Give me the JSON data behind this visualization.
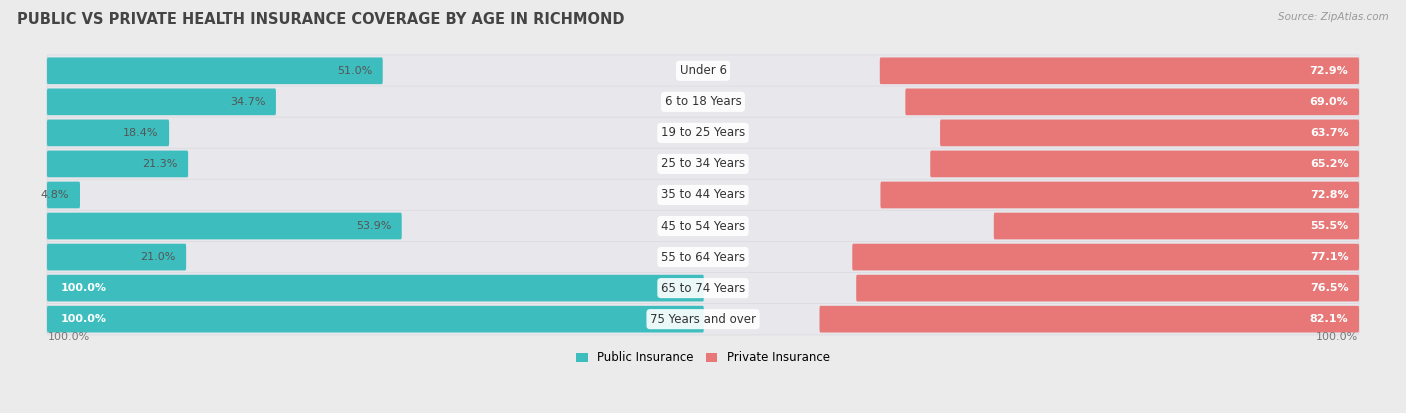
{
  "title": "PUBLIC VS PRIVATE HEALTH INSURANCE COVERAGE BY AGE IN RICHMOND",
  "source": "Source: ZipAtlas.com",
  "categories": [
    "Under 6",
    "6 to 18 Years",
    "19 to 25 Years",
    "25 to 34 Years",
    "35 to 44 Years",
    "45 to 54 Years",
    "55 to 64 Years",
    "65 to 74 Years",
    "75 Years and over"
  ],
  "public_values": [
    51.0,
    34.7,
    18.4,
    21.3,
    4.8,
    53.9,
    21.0,
    100.0,
    100.0
  ],
  "private_values": [
    72.9,
    69.0,
    63.7,
    65.2,
    72.8,
    55.5,
    77.1,
    76.5,
    82.1
  ],
  "public_color": "#3dbdbd",
  "private_color": "#e87878",
  "pill_color": "#e8e8ec",
  "pill_shadow_color": "#d0d0d8",
  "bg_color": "#ebebeb",
  "title_fontsize": 10.5,
  "label_fontsize": 8.5,
  "value_fontsize": 8.0,
  "legend_fontsize": 8.5,
  "axis_max": 100.0,
  "center_label_bg": "#f5f5f5"
}
